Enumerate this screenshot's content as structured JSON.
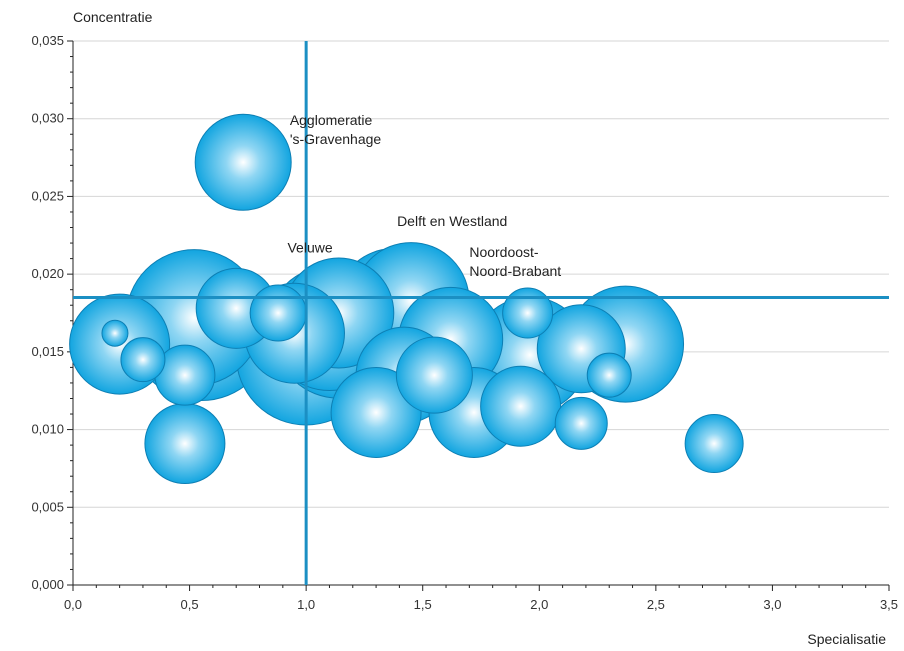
{
  "chart_data": {
    "type": "scatter",
    "subtype": "bubble",
    "title": "",
    "xlabel": "Specialisatie",
    "ylabel": "Concentratie",
    "xlim": [
      0,
      3.5
    ],
    "ylim": [
      0,
      0.035
    ],
    "x_ticks": [
      "0,0",
      "0,5",
      "1,0",
      "1,5",
      "2,0",
      "2,5",
      "3,0",
      "3,5"
    ],
    "y_ticks": [
      "0,000",
      "0,005",
      "0,010",
      "0,015",
      "0,020",
      "0,025",
      "0,030",
      "0,035"
    ],
    "grid": "horizontal",
    "reference_lines": {
      "x": 1.0,
      "y": 0.0185
    },
    "colors": {
      "bubble": "#1aa8e0",
      "bubble_edge": "#0d7fb4",
      "reference": "#1b8fc3",
      "grid": "#d6d6d6",
      "axis": "#222222"
    },
    "bubbles": [
      {
        "x": 0.2,
        "y": 0.0155,
        "r": 50
      },
      {
        "x": 0.18,
        "y": 0.0162,
        "r": 13
      },
      {
        "x": 0.3,
        "y": 0.0145,
        "r": 22
      },
      {
        "x": 0.48,
        "y": 0.0135,
        "r": 30
      },
      {
        "x": 0.48,
        "y": 0.0091,
        "r": 40
      },
      {
        "x": 0.52,
        "y": 0.0172,
        "r": 68
      },
      {
        "x": 0.55,
        "y": 0.0165,
        "r": 72
      },
      {
        "x": 0.7,
        "y": 0.0178,
        "r": 40
      },
      {
        "x": 0.73,
        "y": 0.0272,
        "r": 48
      },
      {
        "x": 0.88,
        "y": 0.0175,
        "r": 28
      },
      {
        "x": 0.95,
        "y": 0.0162,
        "r": 50
      },
      {
        "x": 1.0,
        "y": 0.0148,
        "r": 70
      },
      {
        "x": 1.1,
        "y": 0.0165,
        "r": 62
      },
      {
        "x": 1.14,
        "y": 0.0175,
        "r": 55
      },
      {
        "x": 1.14,
        "y": 0.0162,
        "r": 65
      },
      {
        "x": 1.3,
        "y": 0.0111,
        "r": 45
      },
      {
        "x": 1.38,
        "y": 0.0178,
        "r": 60
      },
      {
        "x": 1.42,
        "y": 0.0135,
        "r": 48
      },
      {
        "x": 1.45,
        "y": 0.0183,
        "r": 58
      },
      {
        "x": 1.55,
        "y": 0.0135,
        "r": 38
      },
      {
        "x": 1.62,
        "y": 0.0158,
        "r": 52
      },
      {
        "x": 1.72,
        "y": 0.0111,
        "r": 45
      },
      {
        "x": 1.92,
        "y": 0.0115,
        "r": 40
      },
      {
        "x": 1.95,
        "y": 0.0175,
        "r": 25
      },
      {
        "x": 1.96,
        "y": 0.0148,
        "r": 58
      },
      {
        "x": 2.18,
        "y": 0.0104,
        "r": 26
      },
      {
        "x": 2.18,
        "y": 0.0152,
        "r": 44
      },
      {
        "x": 2.3,
        "y": 0.0135,
        "r": 22
      },
      {
        "x": 2.37,
        "y": 0.0155,
        "r": 58
      },
      {
        "x": 2.75,
        "y": 0.0091,
        "r": 29
      }
    ],
    "annotations": [
      {
        "lines": [
          "Agglomeratie",
          "'s-Gravenhage"
        ],
        "x": 0.93,
        "y": 0.0296
      },
      {
        "lines": [
          "Delft en Westland"
        ],
        "x": 1.39,
        "y": 0.0231
      },
      {
        "lines": [
          "Veluwe"
        ],
        "x": 0.92,
        "y": 0.0214
      },
      {
        "lines": [
          "Noordoost-",
          "Noord-Brabant"
        ],
        "x": 1.7,
        "y": 0.0211
      }
    ]
  }
}
